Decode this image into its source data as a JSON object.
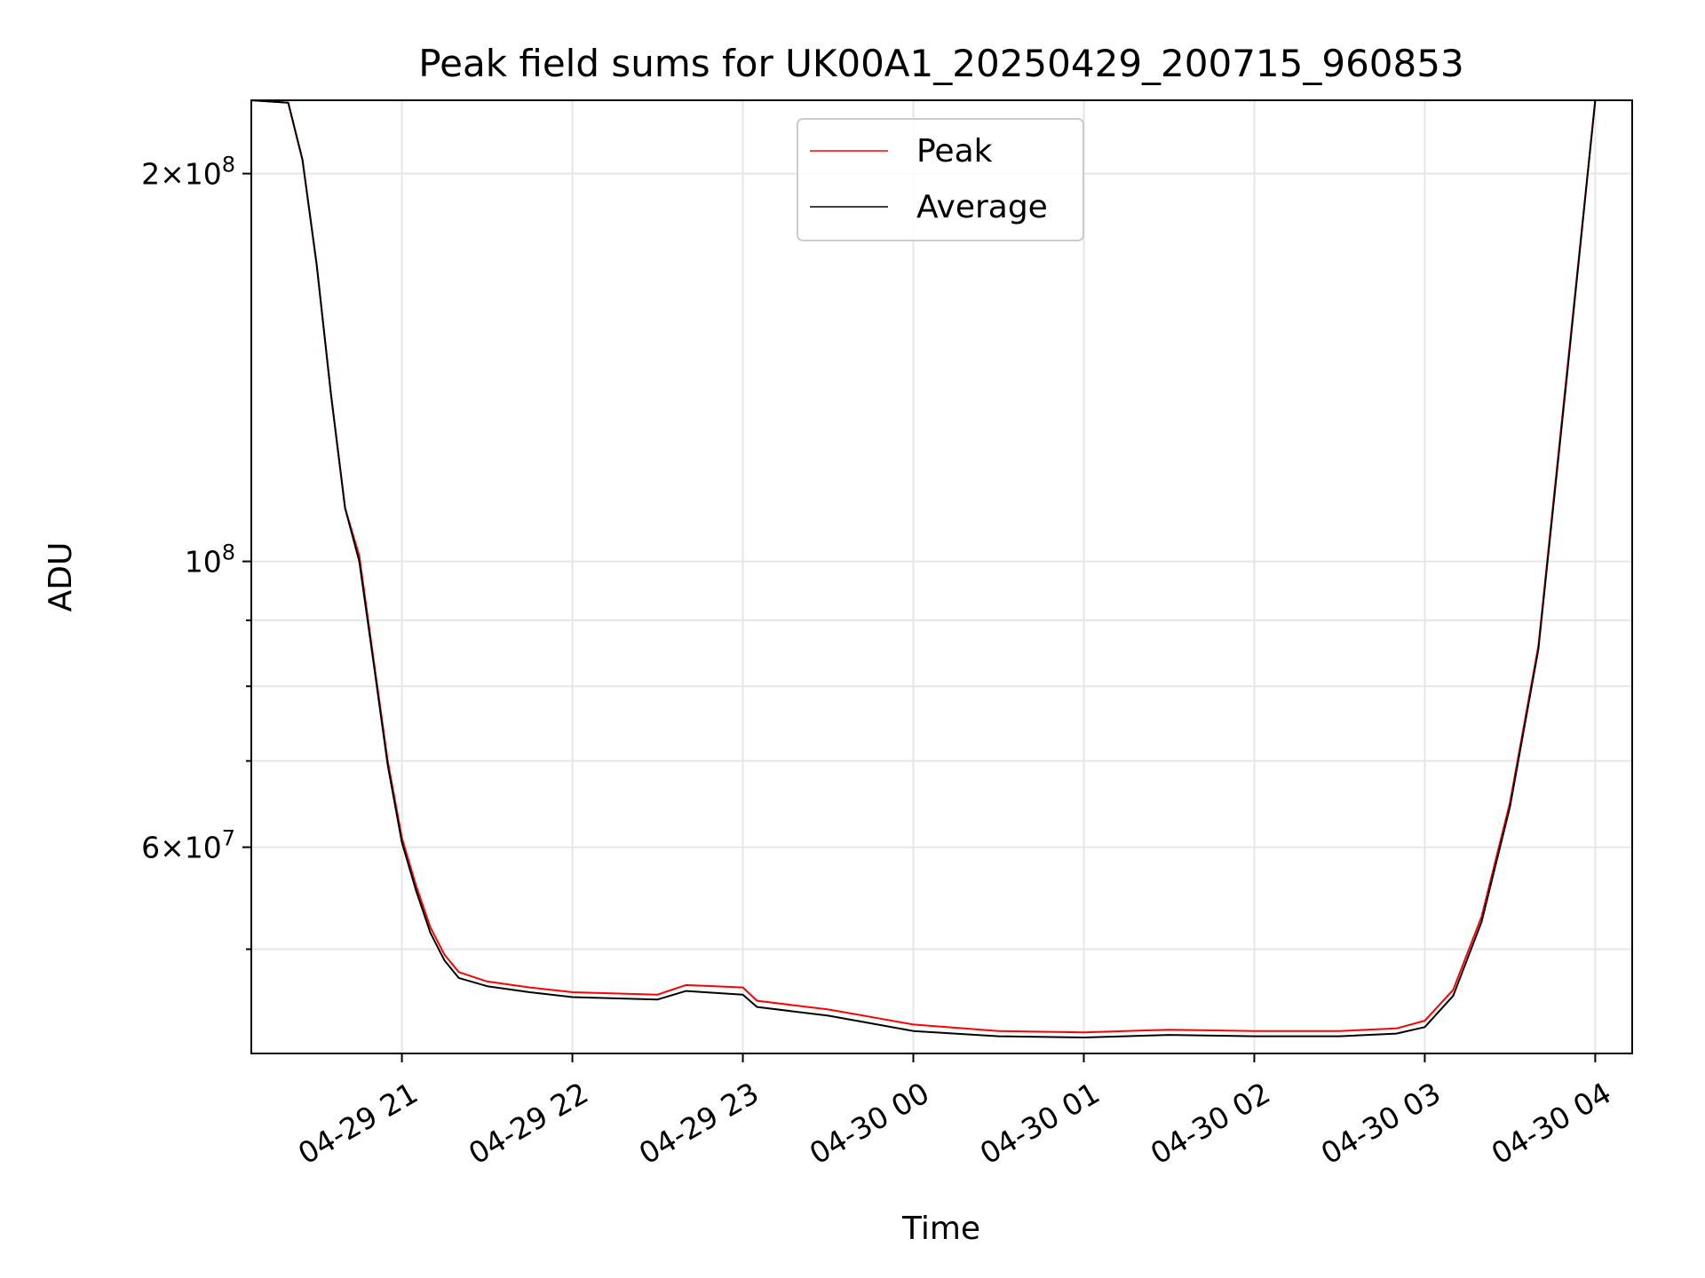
{
  "chart_data": {
    "type": "line",
    "title": "Peak field sums for UK00A1_20250429_200715_960853",
    "xlabel": "Time",
    "ylabel": "ADU",
    "x_axis": {
      "kind": "datetime",
      "range": [
        "2025-04-29 20:07",
        "2025-04-30 04:13"
      ],
      "ticks": [
        {
          "value": "2025-04-29 21:00",
          "label": "04-29 21"
        },
        {
          "value": "2025-04-29 22:00",
          "label": "04-29 22"
        },
        {
          "value": "2025-04-29 23:00",
          "label": "04-29 23"
        },
        {
          "value": "2025-04-30 00:00",
          "label": "04-30 00"
        },
        {
          "value": "2025-04-30 01:00",
          "label": "04-30 01"
        },
        {
          "value": "2025-04-30 02:00",
          "label": "04-30 02"
        },
        {
          "value": "2025-04-30 03:00",
          "label": "04-30 03"
        },
        {
          "value": "2025-04-30 04:00",
          "label": "04-30 04"
        }
      ]
    },
    "y_axis": {
      "scale": "log",
      "range": [
        41500000,
        228000000
      ],
      "major_ticks": [
        {
          "value": 60000000,
          "mant": "6",
          "exp": "7"
        },
        {
          "value": 100000000,
          "mant": "",
          "exp": "8"
        },
        {
          "value": 200000000,
          "mant": "2",
          "exp": "8"
        }
      ],
      "minor_ticks": [
        50000000,
        70000000,
        80000000,
        90000000,
        300000000
      ]
    },
    "grid": true,
    "legend_position": "upper-center",
    "series": [
      {
        "name": "Peak",
        "color": "#ff0000",
        "points": [
          [
            "2025-04-29 20:07",
            228000000
          ],
          [
            "2025-04-29 20:20",
            227000000
          ],
          [
            "2025-04-29 20:25",
            205000000
          ],
          [
            "2025-04-29 20:30",
            170000000
          ],
          [
            "2025-04-29 20:35",
            135000000
          ],
          [
            "2025-04-29 20:40",
            110000000
          ],
          [
            "2025-04-29 20:45",
            101000000
          ],
          [
            "2025-04-29 20:50",
            84000000
          ],
          [
            "2025-04-29 20:55",
            70000000
          ],
          [
            "2025-04-29 21:00",
            61000000
          ],
          [
            "2025-04-29 21:05",
            56000000
          ],
          [
            "2025-04-29 21:10",
            52000000
          ],
          [
            "2025-04-29 21:15",
            49500000
          ],
          [
            "2025-04-29 21:20",
            48000000
          ],
          [
            "2025-04-29 21:30",
            47200000
          ],
          [
            "2025-04-29 21:45",
            46700000
          ],
          [
            "2025-04-29 22:00",
            46300000
          ],
          [
            "2025-04-29 22:30",
            46100000
          ],
          [
            "2025-04-29 22:40",
            46900000
          ],
          [
            "2025-04-29 23:00",
            46700000
          ],
          [
            "2025-04-29 23:05",
            45600000
          ],
          [
            "2025-04-29 23:30",
            44900000
          ],
          [
            "2025-04-29 23:45",
            44300000
          ],
          [
            "2025-04-30 00:00",
            43700000
          ],
          [
            "2025-04-30 00:30",
            43200000
          ],
          [
            "2025-04-30 01:00",
            43100000
          ],
          [
            "2025-04-30 01:30",
            43300000
          ],
          [
            "2025-04-30 02:00",
            43200000
          ],
          [
            "2025-04-30 02:30",
            43200000
          ],
          [
            "2025-04-30 02:50",
            43400000
          ],
          [
            "2025-04-30 03:00",
            44000000
          ],
          [
            "2025-04-30 03:10",
            46500000
          ],
          [
            "2025-04-30 03:20",
            53000000
          ],
          [
            "2025-04-30 03:30",
            65000000
          ],
          [
            "2025-04-30 03:40",
            86000000
          ],
          [
            "2025-04-30 03:50",
            140000000
          ],
          [
            "2025-04-30 04:00",
            228000000
          ],
          [
            "2025-04-30 04:13",
            228000000
          ]
        ]
      },
      {
        "name": "Average",
        "color": "#000000",
        "points": [
          [
            "2025-04-29 20:07",
            228000000
          ],
          [
            "2025-04-29 20:20",
            227000000
          ],
          [
            "2025-04-29 20:25",
            205000000
          ],
          [
            "2025-04-29 20:30",
            170000000
          ],
          [
            "2025-04-29 20:35",
            135000000
          ],
          [
            "2025-04-29 20:40",
            110000000
          ],
          [
            "2025-04-29 20:45",
            100000000
          ],
          [
            "2025-04-29 20:50",
            83500000
          ],
          [
            "2025-04-29 20:55",
            69500000
          ],
          [
            "2025-04-29 21:00",
            60500000
          ],
          [
            "2025-04-29 21:05",
            55500000
          ],
          [
            "2025-04-29 21:10",
            51500000
          ],
          [
            "2025-04-29 21:15",
            49000000
          ],
          [
            "2025-04-29 21:20",
            47500000
          ],
          [
            "2025-04-29 21:30",
            46800000
          ],
          [
            "2025-04-29 21:45",
            46300000
          ],
          [
            "2025-04-29 22:00",
            45900000
          ],
          [
            "2025-04-29 22:30",
            45700000
          ],
          [
            "2025-04-29 22:40",
            46400000
          ],
          [
            "2025-04-29 23:00",
            46100000
          ],
          [
            "2025-04-29 23:05",
            45100000
          ],
          [
            "2025-04-29 23:30",
            44400000
          ],
          [
            "2025-04-29 23:45",
            43800000
          ],
          [
            "2025-04-30 00:00",
            43200000
          ],
          [
            "2025-04-30 00:30",
            42800000
          ],
          [
            "2025-04-30 01:00",
            42700000
          ],
          [
            "2025-04-30 01:30",
            42900000
          ],
          [
            "2025-04-30 02:00",
            42800000
          ],
          [
            "2025-04-30 02:30",
            42800000
          ],
          [
            "2025-04-30 02:50",
            43000000
          ],
          [
            "2025-04-30 03:00",
            43500000
          ],
          [
            "2025-04-30 03:10",
            46000000
          ],
          [
            "2025-04-30 03:20",
            52500000
          ],
          [
            "2025-04-30 03:30",
            64500000
          ],
          [
            "2025-04-30 03:40",
            85500000
          ],
          [
            "2025-04-30 03:50",
            139000000
          ],
          [
            "2025-04-30 04:00",
            228000000
          ],
          [
            "2025-04-30 04:13",
            228000000
          ]
        ]
      }
    ]
  }
}
